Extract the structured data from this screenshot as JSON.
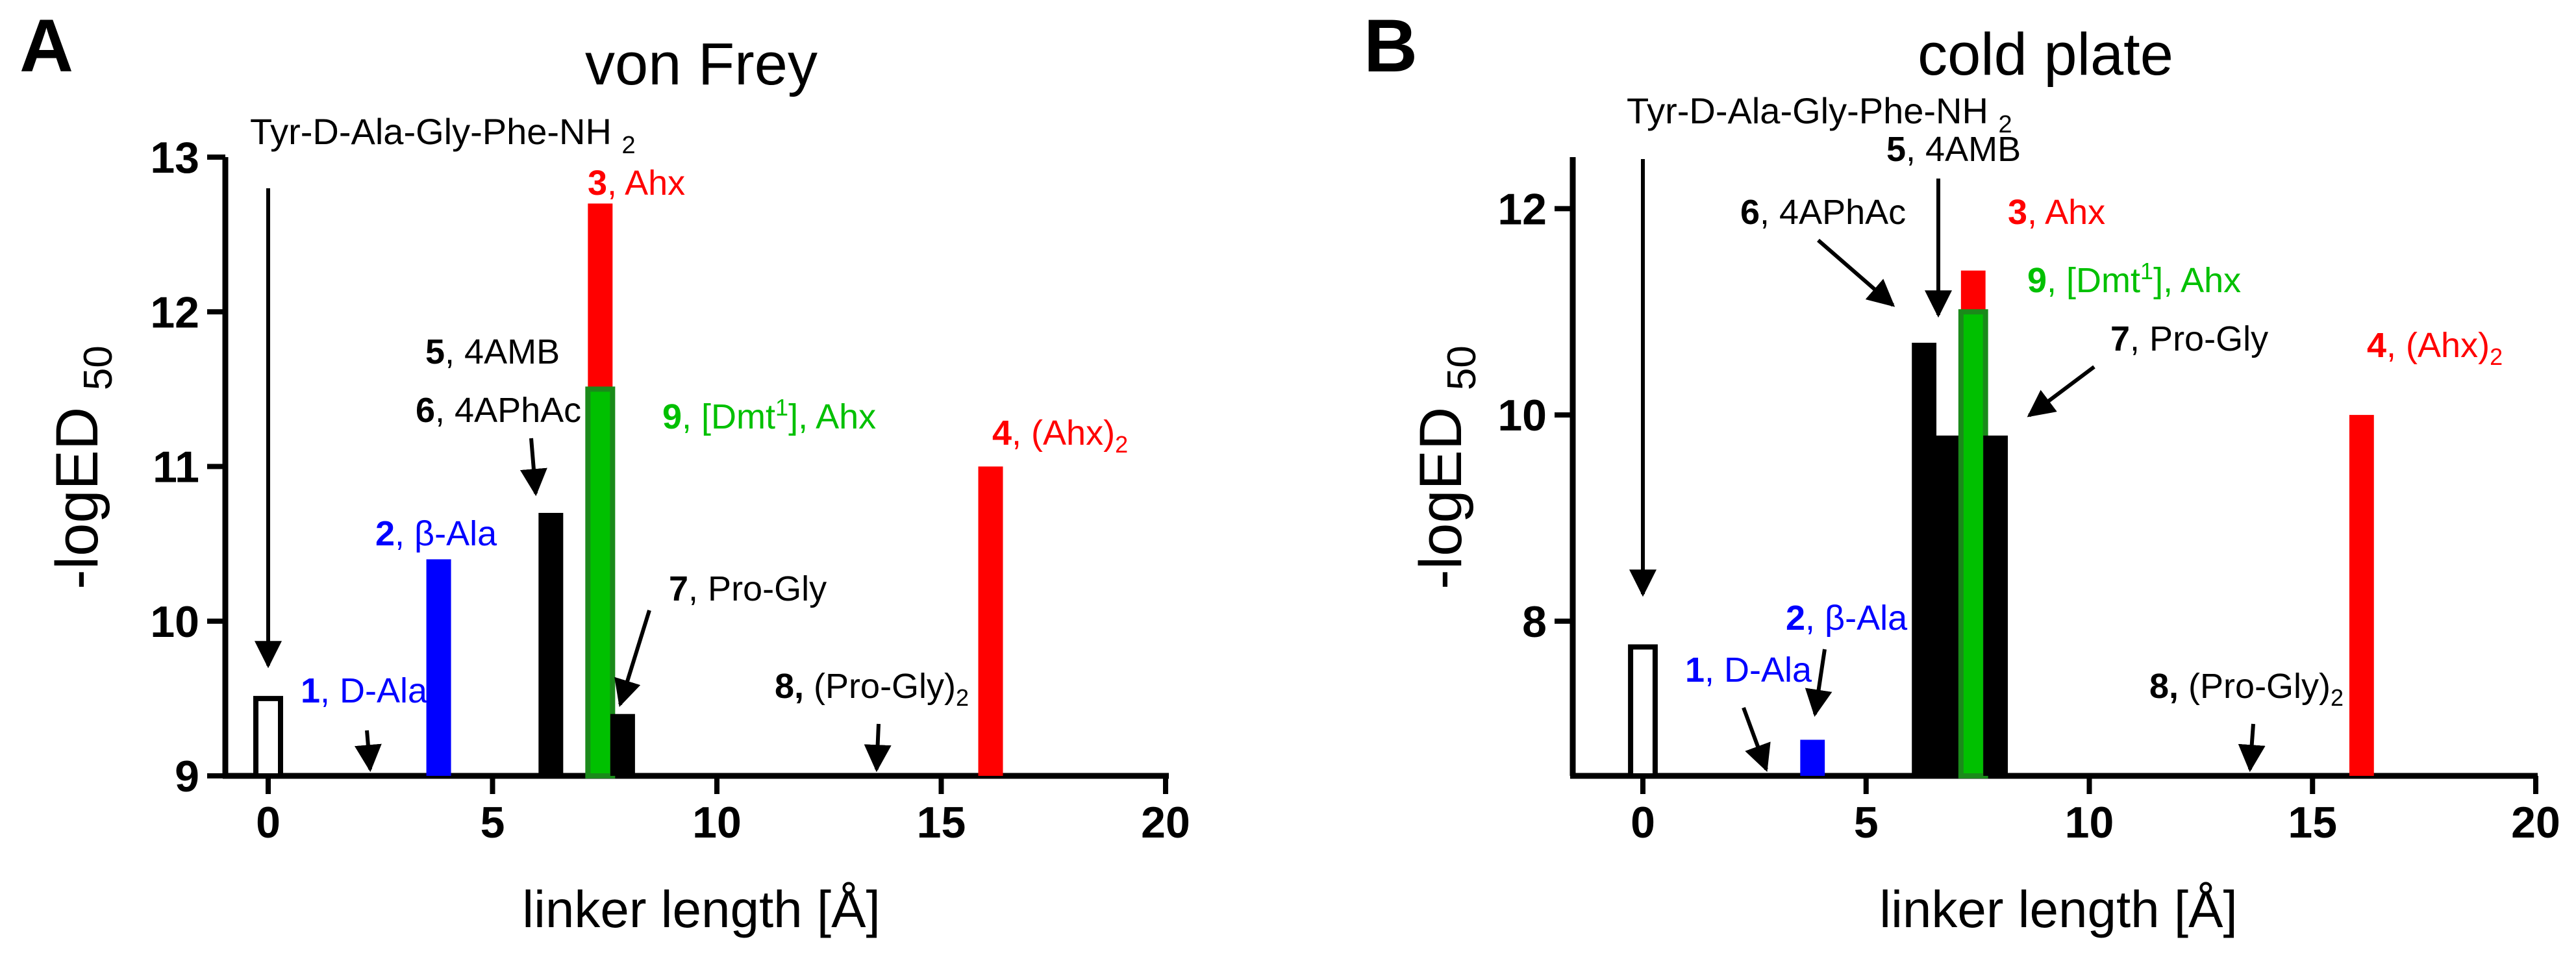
{
  "colors": {
    "black": "#000000",
    "blue": "#0000ff",
    "red": "#ff0000",
    "green": "#00c000",
    "dark_green": "#1a8a1a"
  },
  "chart_data": [
    {
      "type": "bar",
      "panel_letter": "A",
      "title": "von Frey",
      "xlabel": "linker length [Å]",
      "ylabel_main": "-logED",
      "ylabel_sub": "50",
      "xlim": [
        -1,
        20
      ],
      "ylim": [
        9,
        13
      ],
      "xticks": [
        0,
        5,
        10,
        15,
        20
      ],
      "yticks": [
        9,
        10,
        11,
        12,
        13
      ],
      "bars": [
        {
          "id": "parent",
          "x": 0,
          "value": 9.5,
          "color": "#ffffff",
          "stroke": "#000000"
        },
        {
          "id": "2",
          "x": 3.8,
          "value": 10.4,
          "color": "#0000ff"
        },
        {
          "id": "6",
          "x": 6.3,
          "value": 10.7,
          "color": "#000000"
        },
        {
          "id": "3",
          "x": 7.4,
          "value": 12.7,
          "color": "#ff0000"
        },
        {
          "id": "9",
          "x": 7.4,
          "value": 11.5,
          "color": "#00c000",
          "stroke": "#1a8a1a"
        },
        {
          "id": "7",
          "x": 7.9,
          "value": 9.4,
          "color": "#000000"
        },
        {
          "id": "4",
          "x": 16.1,
          "value": 11.0,
          "color": "#ff0000"
        }
      ],
      "labels": [
        {
          "num": "1",
          "text": ", D-Ala",
          "color": "#0000ff"
        },
        {
          "num": "2",
          "text": ", β-Ala",
          "color": "#0000ff"
        },
        {
          "num": "3",
          "text": ", Ahx",
          "color": "#ff0000"
        },
        {
          "num": "4",
          "text": ", (Ahx)",
          "sub": "2",
          "color": "#ff0000"
        },
        {
          "num": "5",
          "text": ", 4AMB",
          "color": "#000000"
        },
        {
          "num": "6",
          "text": ", 4APhAc",
          "color": "#000000"
        },
        {
          "num": "7",
          "text": ", Pro-Gly",
          "color": "#000000"
        },
        {
          "num": "8,",
          "text": " (Pro-Gly)",
          "sub": "2",
          "color": "#000000"
        },
        {
          "num": "9",
          "text": ", [Dmt",
          "sup": "1",
          "text2": "], Ahx",
          "color": "#00c000"
        }
      ],
      "parent_label": {
        "text": "Tyr-D-Ala-Gly-Phe-NH",
        "sub": "2"
      }
    },
    {
      "type": "bar",
      "panel_letter": "B",
      "title": "cold plate",
      "xlabel": "linker length [Å]",
      "ylabel_main": "-logED",
      "ylabel_sub": "50",
      "xlim": [
        -1,
        20
      ],
      "ylim": [
        6.5,
        12.5
      ],
      "xticks": [
        0,
        5,
        10,
        15,
        20
      ],
      "yticks": [
        8,
        10,
        12
      ],
      "bars": [
        {
          "id": "parent",
          "x": 0,
          "value": 7.75,
          "color": "#ffffff",
          "stroke": "#000000"
        },
        {
          "id": "2",
          "x": 3.8,
          "value": 6.85,
          "color": "#0000ff"
        },
        {
          "id": "6",
          "x": 6.3,
          "value": 10.7,
          "color": "#000000"
        },
        {
          "id": "5",
          "x": 6.8,
          "value": 9.8,
          "color": "#000000"
        },
        {
          "id": "3",
          "x": 7.4,
          "value": 11.4,
          "color": "#ff0000"
        },
        {
          "id": "9",
          "x": 7.4,
          "value": 11.0,
          "color": "#00c000",
          "stroke": "#1a8a1a"
        },
        {
          "id": "7",
          "x": 7.9,
          "value": 9.8,
          "color": "#000000"
        },
        {
          "id": "4",
          "x": 16.1,
          "value": 10.0,
          "color": "#ff0000"
        }
      ],
      "labels": [
        {
          "num": "1",
          "text": ", D-Ala",
          "color": "#0000ff"
        },
        {
          "num": "2",
          "text": ", β-Ala",
          "color": "#0000ff"
        },
        {
          "num": "3",
          "text": ", Ahx",
          "color": "#ff0000"
        },
        {
          "num": "4",
          "text": ", (Ahx)",
          "sub": "2",
          "color": "#ff0000"
        },
        {
          "num": "5",
          "text": ", 4AMB",
          "color": "#000000"
        },
        {
          "num": "6",
          "text": ", 4APhAc",
          "color": "#000000"
        },
        {
          "num": "7",
          "text": ", Pro-Gly",
          "color": "#000000"
        },
        {
          "num": "8,",
          "text": " (Pro-Gly)",
          "sub": "2",
          "color": "#000000"
        },
        {
          "num": "9",
          "text": ", [Dmt",
          "sup": "1",
          "text2": "], Ahx",
          "color": "#00c000"
        }
      ],
      "parent_label": {
        "text": "Tyr-D-Ala-Gly-Phe-NH",
        "sub": "2"
      }
    }
  ]
}
